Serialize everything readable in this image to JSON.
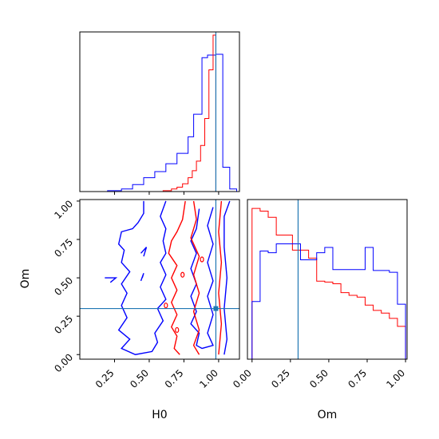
{
  "chart_data": {
    "type": "corner",
    "parameters": [
      "H0",
      "Om"
    ],
    "truths": {
      "H0": 0.98,
      "Om": 0.3
    },
    "truth_color": "#1f77b4",
    "series": [
      {
        "color": "#ff0000"
      },
      {
        "color": "#0000ff"
      }
    ],
    "h0_hist": {
      "xlim": [
        0.0,
        1.15
      ],
      "red_bins": [
        [
          0.6,
          0.66,
          1
        ],
        [
          0.66,
          0.7,
          3
        ],
        [
          0.7,
          0.74,
          5
        ],
        [
          0.74,
          0.78,
          9
        ],
        [
          0.78,
          0.81,
          16
        ],
        [
          0.81,
          0.84,
          24
        ],
        [
          0.84,
          0.87,
          35
        ],
        [
          0.87,
          0.9,
          53
        ],
        [
          0.9,
          0.93,
          84
        ],
        [
          0.93,
          0.96,
          140
        ],
        [
          0.96,
          0.98,
          180
        ],
        [
          0.98,
          1.0,
          0
        ]
      ],
      "blue_bins": [
        [
          0.2,
          0.3,
          1
        ],
        [
          0.3,
          0.38,
          3
        ],
        [
          0.38,
          0.46,
          8
        ],
        [
          0.46,
          0.54,
          16
        ],
        [
          0.54,
          0.62,
          23
        ],
        [
          0.62,
          0.7,
          32
        ],
        [
          0.7,
          0.78,
          44
        ],
        [
          0.78,
          0.82,
          63
        ],
        [
          0.82,
          0.88,
          89
        ],
        [
          0.88,
          0.92,
          154
        ],
        [
          0.92,
          0.98,
          157
        ],
        [
          0.98,
          1.03,
          158
        ],
        [
          1.03,
          1.08,
          28
        ],
        [
          1.08,
          1.13,
          3
        ]
      ]
    },
    "om_hist": {
      "xlim": [
        -0.03,
        1.01
      ],
      "red_values": [
        170,
        167,
        160,
        140,
        140,
        123,
        123,
        114,
        88,
        87,
        85,
        75,
        72,
        70,
        61,
        55,
        52,
        46,
        37
      ],
      "blue_values": [
        65,
        122,
        120,
        130,
        130,
        130,
        112,
        112,
        120,
        126,
        101,
        101,
        101,
        101,
        126,
        100,
        100,
        98,
        62
      ],
      "bin_start": 0.0,
      "bin_width": 0.05263
    },
    "contour_panel": {
      "xlim": [
        0.0,
        1.15
      ],
      "ylim": [
        -0.03,
        1.01
      ],
      "x_ticks": [
        0.25,
        0.5,
        0.75,
        1.0
      ],
      "y_ticks": [
        0.0,
        0.25,
        0.5,
        0.75,
        1.0
      ]
    },
    "tick_labels": [
      "0.25",
      "0.50",
      "0.75",
      "1.00"
    ],
    "om_tick_labels": [
      "0.00",
      "0.25",
      "0.50",
      "0.75",
      "1.00"
    ],
    "xlabel_h0": "H0",
    "xlabel_om": "Om",
    "ylabel_om": "Om"
  }
}
